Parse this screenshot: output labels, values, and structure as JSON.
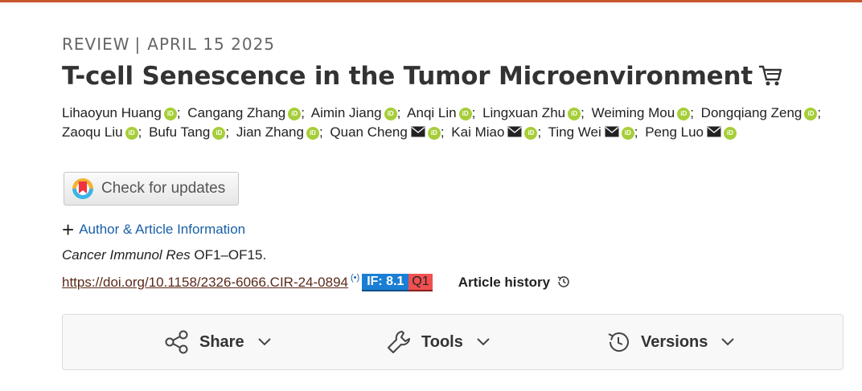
{
  "meta": {
    "type": "REVIEW",
    "separator": "|",
    "date": "APRIL 15 2025"
  },
  "title": "T-cell Senescence in the Tumor Microenvironment",
  "authors": [
    {
      "name": "Lihaoyun Huang",
      "email": false
    },
    {
      "name": "Cangang Zhang",
      "email": false
    },
    {
      "name": "Aimin Jiang",
      "email": false
    },
    {
      "name": "Anqi Lin",
      "email": false
    },
    {
      "name": "Lingxuan Zhu",
      "email": false
    },
    {
      "name": "Weiming Mou",
      "email": false
    },
    {
      "name": "Dongqiang Zeng",
      "email": false
    },
    {
      "name": "Zaoqu Liu",
      "email": false
    },
    {
      "name": "Bufu Tang",
      "email": false
    },
    {
      "name": "Jian Zhang",
      "email": false
    },
    {
      "name": "Quan Cheng",
      "email": true
    },
    {
      "name": "Kai Miao",
      "email": true
    },
    {
      "name": "Ting Wei",
      "email": true
    },
    {
      "name": "Peng Luo",
      "email": true
    }
  ],
  "orcid_label": "iD",
  "check_updates": "Check for updates",
  "author_info": {
    "plus": "+",
    "label": "Author & Article Information"
  },
  "journal": {
    "name": "Cancer Immunol Res",
    "pages": "OF1–OF15."
  },
  "doi": "https://doi.org/10.1158/2326-6066.CIR-24-0894",
  "signal_glyph": "(•)",
  "impact": {
    "if": "IF: 8.1",
    "quartile": "Q1"
  },
  "history": "Article history",
  "toolbar": {
    "share": "Share",
    "tools": "Tools",
    "versions": "Versions"
  },
  "colors": {
    "accent": "#c8562e",
    "link": "#1a5fa8",
    "orcid": "#a6ce39",
    "if_badge": "#1a7fd4",
    "q_badge": "#f05050"
  },
  "icons": [
    "cart-icon",
    "orcid-icon",
    "mail-icon",
    "crossmark-icon",
    "plus-icon",
    "altmetric-icon",
    "history-icon",
    "share-icon",
    "wrench-icon",
    "versions-icon",
    "chevron-down-icon"
  ]
}
